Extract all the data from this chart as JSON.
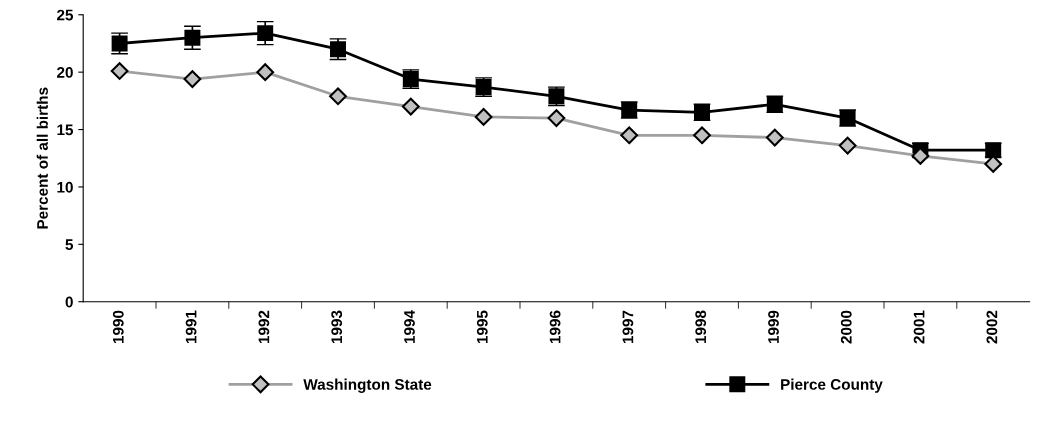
{
  "chart_data": {
    "type": "line",
    "ylabel": "Percent of all births",
    "categories": [
      "1990",
      "1991",
      "1992",
      "1993",
      "1994",
      "1995",
      "1996",
      "1997",
      "1998",
      "1999",
      "2000",
      "2001",
      "2002"
    ],
    "series": [
      {
        "name": "Washington State",
        "color": "#a0a0a0",
        "marker": "diamond",
        "values": [
          20.1,
          19.4,
          20.0,
          17.9,
          17.0,
          16.1,
          16.0,
          14.5,
          14.5,
          14.3,
          13.6,
          12.7,
          12.0
        ]
      },
      {
        "name": "Pierce County",
        "color": "#000000",
        "marker": "square",
        "values": [
          22.5,
          23.0,
          23.4,
          22.0,
          19.4,
          18.7,
          17.9,
          16.7,
          16.5,
          17.2,
          16.0,
          13.2,
          13.2
        ],
        "errors": [
          0.9,
          1.0,
          1.0,
          0.9,
          0.8,
          0.8,
          0.8,
          0.7,
          0.7,
          0.7,
          0.7,
          0.6,
          0.6
        ]
      }
    ],
    "ylim": [
      0,
      25
    ],
    "yticks": [
      0,
      5,
      10,
      15,
      20,
      25
    ],
    "grid": false,
    "legend": "bottom",
    "line_style": "solid"
  }
}
